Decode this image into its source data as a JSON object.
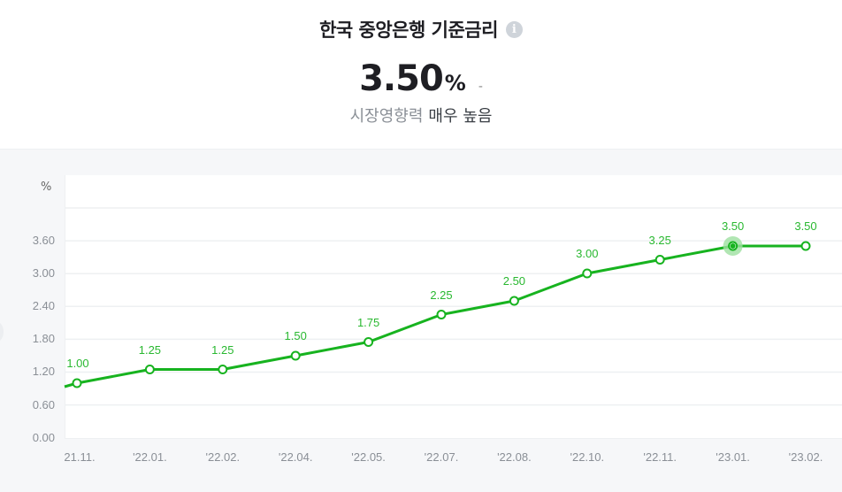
{
  "header": {
    "title": "한국 중앙은행 기준금리",
    "info_icon": "info-icon",
    "value": "3.50",
    "unit": "%",
    "change": "-",
    "impact_label": "시장영향력",
    "impact_value": "매우 높음"
  },
  "colors": {
    "line": "#17b31f",
    "label": "#29b830",
    "highlight": "#9ee0a0",
    "grid": "#eef0f2",
    "background": "#f6f7f9"
  },
  "chart_data": {
    "type": "line",
    "title": "한국 중앙은행 기준금리",
    "xlabel": "",
    "ylabel": "%",
    "y_ticks": [
      "3.60",
      "3.00",
      "2.40",
      "1.80",
      "1.20",
      "0.60",
      "0.00"
    ],
    "ylim": [
      0,
      3.6
    ],
    "grid": true,
    "categories": [
      "'21.11.",
      "'22.01.",
      "'22.02.",
      "'22.04.",
      "'22.05.",
      "'22.07.",
      "'22.08.",
      "'22.10.",
      "'22.11.",
      "'23.01.",
      "'23.02."
    ],
    "x_tick_display": [
      "21.11.",
      "'22.01.",
      "'22.02.",
      "'22.04.",
      "'22.05.",
      "'22.07.",
      "'22.08.",
      "'22.10.",
      "'22.11.",
      "'23.01.",
      "'23.02."
    ],
    "series": [
      {
        "name": "기준금리",
        "values": [
          1.0,
          1.25,
          1.25,
          1.5,
          1.75,
          2.25,
          2.5,
          3.0,
          3.25,
          3.5,
          3.5
        ],
        "labels": [
          "1.00",
          "1.25",
          "1.25",
          "1.50",
          "1.75",
          "2.25",
          "2.50",
          "3.00",
          "3.25",
          "3.50",
          "3.50"
        ]
      }
    ],
    "highlighted_index": 9
  }
}
